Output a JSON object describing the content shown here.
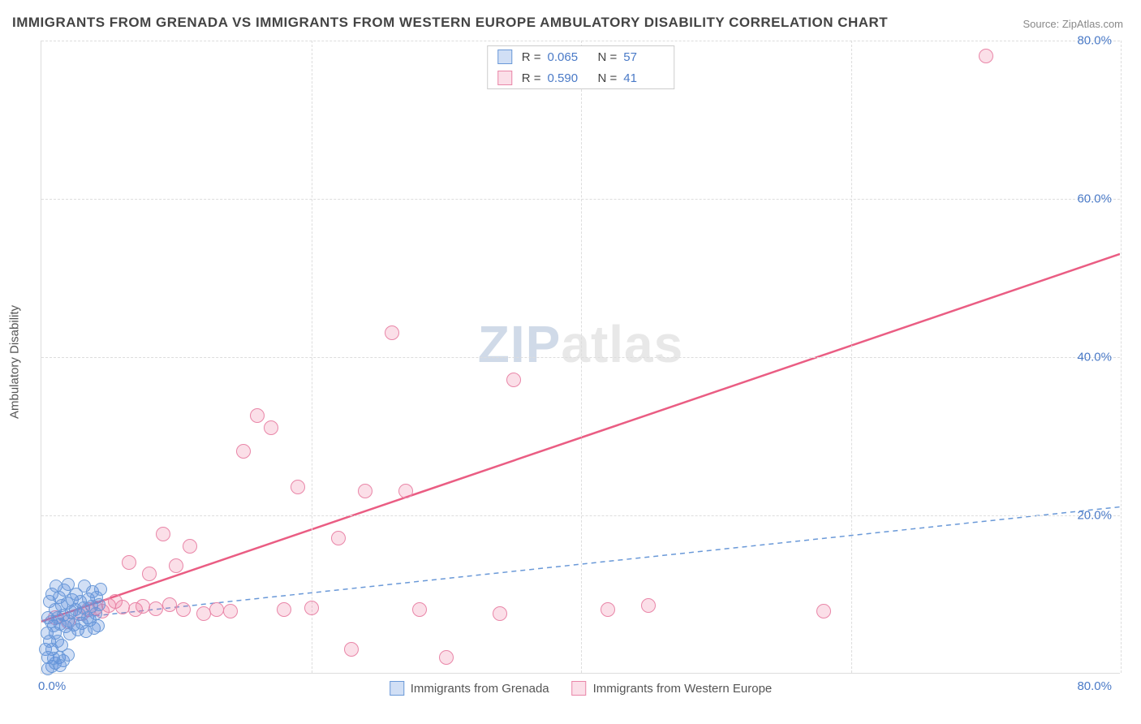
{
  "title": "IMMIGRANTS FROM GRENADA VS IMMIGRANTS FROM WESTERN EUROPE AMBULATORY DISABILITY CORRELATION CHART",
  "source": "Source: ZipAtlas.com",
  "y_axis_label": "Ambulatory Disability",
  "watermark_a": "ZIP",
  "watermark_b": "atlas",
  "chart": {
    "type": "scatter",
    "background_color": "#ffffff",
    "grid_color": "#dddddd",
    "xlim": [
      0,
      80
    ],
    "ylim": [
      0,
      80
    ],
    "x_ticks": [
      0,
      20,
      40,
      60,
      80
    ],
    "y_ticks": [
      20,
      40,
      60,
      80
    ],
    "x_tick_labels": {
      "min": "0.0%",
      "max": "80.0%"
    },
    "y_tick_labels": [
      "20.0%",
      "40.0%",
      "60.0%",
      "80.0%"
    ],
    "tick_label_color": "#4a7ac7",
    "axis_label_color": "#555555",
    "title_color": "#444444",
    "title_fontsize": 17,
    "label_fontsize": 15
  },
  "series": {
    "blue": {
      "label": "Immigrants from Grenada",
      "fill": "rgba(90,140,220,0.28)",
      "stroke": "#6a99d8",
      "marker_radius": 8,
      "R_label": "R =",
      "R": "0.065",
      "N_label": "N =",
      "N": "57",
      "trend": {
        "x1": 0,
        "y1": 6.5,
        "x2": 80,
        "y2": 21,
        "stroke": "#6a99d8",
        "width": 1.5,
        "dash": "6,5"
      },
      "points": [
        [
          0.3,
          3
        ],
        [
          0.4,
          5
        ],
        [
          0.5,
          7
        ],
        [
          0.5,
          2
        ],
        [
          0.6,
          9
        ],
        [
          0.6,
          4
        ],
        [
          0.7,
          6.5
        ],
        [
          0.8,
          10
        ],
        [
          0.8,
          3
        ],
        [
          0.9,
          6
        ],
        [
          1.0,
          8
        ],
        [
          1.0,
          5
        ],
        [
          1.1,
          11
        ],
        [
          1.2,
          7
        ],
        [
          1.2,
          4
        ],
        [
          1.3,
          9.5
        ],
        [
          1.4,
          6.2
        ],
        [
          1.5,
          8.5
        ],
        [
          1.5,
          3.5
        ],
        [
          1.6,
          7.3
        ],
        [
          1.7,
          10.5
        ],
        [
          1.8,
          5.8
        ],
        [
          1.9,
          8.8
        ],
        [
          2.0,
          6.6
        ],
        [
          2.0,
          11.2
        ],
        [
          2.1,
          4.9
        ],
        [
          2.2,
          7.7
        ],
        [
          2.3,
          9.2
        ],
        [
          2.4,
          6.1
        ],
        [
          2.5,
          8.0
        ],
        [
          2.6,
          10.0
        ],
        [
          2.7,
          5.4
        ],
        [
          2.8,
          7.4
        ],
        [
          2.9,
          9.0
        ],
        [
          3.0,
          6.3
        ],
        [
          3.1,
          8.2
        ],
        [
          3.2,
          11.0
        ],
        [
          3.3,
          5.2
        ],
        [
          3.4,
          7.0
        ],
        [
          3.5,
          9.3
        ],
        [
          3.6,
          6.7
        ],
        [
          3.7,
          8.4
        ],
        [
          3.8,
          10.3
        ],
        [
          3.9,
          5.6
        ],
        [
          4.0,
          7.5
        ],
        [
          4.1,
          9.5
        ],
        [
          4.2,
          6.0
        ],
        [
          4.3,
          8.6
        ],
        [
          4.4,
          10.6
        ],
        [
          1.0,
          1.2
        ],
        [
          0.8,
          0.8
        ],
        [
          1.3,
          2.0
        ],
        [
          1.6,
          1.5
        ],
        [
          2.0,
          2.3
        ],
        [
          0.5,
          0.5
        ],
        [
          0.9,
          1.8
        ],
        [
          1.4,
          0.9
        ]
      ]
    },
    "pink": {
      "label": "Immigrants from Western Europe",
      "fill": "rgba(235,110,150,0.22)",
      "stroke": "#e986a8",
      "marker_radius": 9,
      "R_label": "R =",
      "R": "0.590",
      "N_label": "N =",
      "N": "41",
      "trend": {
        "x1": 0,
        "y1": 6.5,
        "x2": 80,
        "y2": 53,
        "stroke": "#ea5d83",
        "width": 2.5,
        "dash": ""
      },
      "points": [
        [
          1.0,
          7
        ],
        [
          2.0,
          6.5
        ],
        [
          3.0,
          7.5
        ],
        [
          3.5,
          8.0
        ],
        [
          4.0,
          8.2
        ],
        [
          4.5,
          7.8
        ],
        [
          5.0,
          8.5
        ],
        [
          5.5,
          9.0
        ],
        [
          6.0,
          8.3
        ],
        [
          6.5,
          14.0
        ],
        [
          7.0,
          8.0
        ],
        [
          7.5,
          8.4
        ],
        [
          8.0,
          12.5
        ],
        [
          8.5,
          8.1
        ],
        [
          9.0,
          17.5
        ],
        [
          9.5,
          8.6
        ],
        [
          10.0,
          13.5
        ],
        [
          10.5,
          8.0
        ],
        [
          11.0,
          16.0
        ],
        [
          12.0,
          7.5
        ],
        [
          13.0,
          8.0
        ],
        [
          14.0,
          7.8
        ],
        [
          15.0,
          28.0
        ],
        [
          16.0,
          32.5
        ],
        [
          17.0,
          31.0
        ],
        [
          18.0,
          8.0
        ],
        [
          19.0,
          23.5
        ],
        [
          20.0,
          8.2
        ],
        [
          22.0,
          17.0
        ],
        [
          23.0,
          3.0
        ],
        [
          24.0,
          23.0
        ],
        [
          26.0,
          43.0
        ],
        [
          27.0,
          23.0
        ],
        [
          28.0,
          8.0
        ],
        [
          30.0,
          2.0
        ],
        [
          34.0,
          7.5
        ],
        [
          35.0,
          37.0
        ],
        [
          42.0,
          8.0
        ],
        [
          58.0,
          7.8
        ],
        [
          70.0,
          78.0
        ],
        [
          45.0,
          8.5
        ]
      ]
    }
  }
}
